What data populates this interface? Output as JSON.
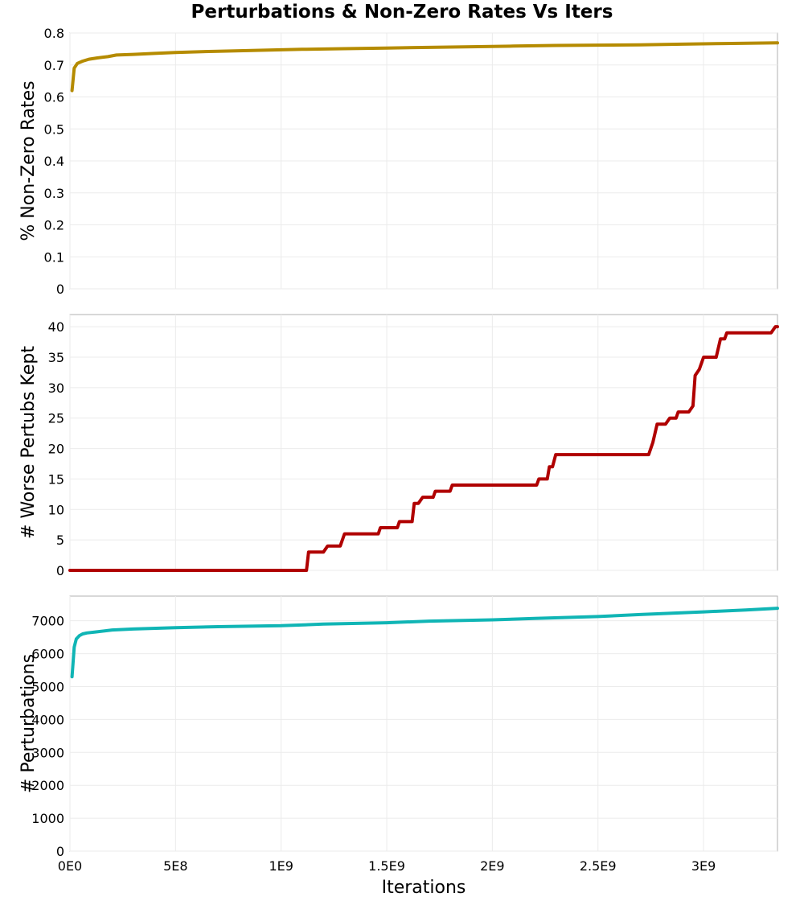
{
  "title": "Perturbations & Non-Zero Rates Vs Iters",
  "chart_data": [
    {
      "type": "line",
      "title": "",
      "xlabel": "",
      "ylabel": "% Non-Zero Rates",
      "xlim": [
        0,
        3350000000
      ],
      "ylim": [
        0,
        0.8
      ],
      "xticks": [
        0,
        500000000,
        1000000000,
        1500000000,
        2000000000,
        2500000000,
        3000000000
      ],
      "yticks": [
        0,
        0.1,
        0.2,
        0.3,
        0.4,
        0.5,
        0.6,
        0.7,
        0.8
      ],
      "ytick_labels": [
        "0",
        "0.1",
        "0.2",
        "0.3",
        "0.4",
        "0.5",
        "0.6",
        "0.7",
        "0.8"
      ],
      "grid": true,
      "color": "#b58b00",
      "series": [
        {
          "x": [
            10000000,
            20000000,
            35000000,
            60000000,
            90000000,
            130000000,
            180000000,
            220000000,
            300000000,
            400000000,
            500000000,
            700000000,
            900000000,
            1100000000,
            1300000000,
            1500000000,
            1700000000,
            1900000000,
            2100000000,
            2300000000,
            2500000000,
            2700000000,
            2900000000,
            3100000000,
            3350000000
          ],
          "y": [
            0.62,
            0.69,
            0.705,
            0.712,
            0.718,
            0.722,
            0.726,
            0.731,
            0.733,
            0.736,
            0.739,
            0.743,
            0.746,
            0.749,
            0.751,
            0.753,
            0.755,
            0.757,
            0.759,
            0.761,
            0.762,
            0.763,
            0.765,
            0.767,
            0.769
          ]
        }
      ]
    },
    {
      "type": "line",
      "title": "",
      "xlabel": "",
      "ylabel": "# Worse Pertubs Kept",
      "xlim": [
        0,
        3350000000
      ],
      "ylim": [
        0,
        42
      ],
      "xticks": [
        0,
        500000000,
        1000000000,
        1500000000,
        2000000000,
        2500000000,
        3000000000
      ],
      "yticks": [
        0,
        5,
        10,
        15,
        20,
        25,
        30,
        35,
        40
      ],
      "ytick_labels": [
        "0",
        "5",
        "10",
        "15",
        "20",
        "25",
        "30",
        "35",
        "40"
      ],
      "grid": true,
      "color": "#b00000",
      "series": [
        {
          "x": [
            0,
            1120000000,
            1130000000,
            1200000000,
            1220000000,
            1280000000,
            1300000000,
            1460000000,
            1470000000,
            1550000000,
            1560000000,
            1620000000,
            1630000000,
            1650000000,
            1670000000,
            1720000000,
            1730000000,
            1800000000,
            1810000000,
            2210000000,
            2220000000,
            2260000000,
            2270000000,
            2285000000,
            2300000000,
            2740000000,
            2760000000,
            2780000000,
            2820000000,
            2840000000,
            2870000000,
            2880000000,
            2930000000,
            2950000000,
            2960000000,
            2980000000,
            3000000000,
            3060000000,
            3080000000,
            3100000000,
            3110000000,
            3320000000,
            3340000000,
            3350000000
          ],
          "y": [
            0,
            0,
            3,
            3,
            4,
            4,
            6,
            6,
            7,
            7,
            8,
            8,
            11,
            11,
            12,
            12,
            13,
            13,
            14,
            14,
            15,
            15,
            17,
            17,
            19,
            19,
            21,
            24,
            24,
            25,
            25,
            26,
            26,
            27,
            32,
            33,
            35,
            35,
            38,
            38,
            39,
            39,
            40,
            40
          ]
        }
      ]
    },
    {
      "type": "line",
      "title": "",
      "xlabel": "Iterations",
      "ylabel": "# Perturbations",
      "xlim": [
        0,
        3350000000
      ],
      "ylim": [
        0,
        7750
      ],
      "xticks": [
        0,
        500000000,
        1000000000,
        1500000000,
        2000000000,
        2500000000,
        3000000000
      ],
      "xtick_labels": [
        "0E0",
        "5E8",
        "1E9",
        "1.5E9",
        "2E9",
        "2.5E9",
        "3E9"
      ],
      "yticks": [
        0,
        1000,
        2000,
        3000,
        4000,
        5000,
        6000,
        7000
      ],
      "ytick_labels": [
        "0",
        "1000",
        "2000",
        "3000",
        "4000",
        "5000",
        "6000",
        "7000"
      ],
      "grid": true,
      "color": "#10b5b5",
      "series": [
        {
          "x": [
            10000000,
            20000000,
            30000000,
            45000000,
            60000000,
            80000000,
            120000000,
            200000000,
            300000000,
            500000000,
            700000000,
            1000000000,
            1200000000,
            1500000000,
            1700000000,
            2000000000,
            2200000000,
            2500000000,
            2700000000,
            3000000000,
            3200000000,
            3350000000
          ],
          "y": [
            5300,
            6200,
            6450,
            6550,
            6600,
            6630,
            6660,
            6720,
            6750,
            6790,
            6820,
            6850,
            6900,
            6940,
            6990,
            7030,
            7070,
            7130,
            7190,
            7270,
            7330,
            7380
          ]
        }
      ]
    }
  ]
}
